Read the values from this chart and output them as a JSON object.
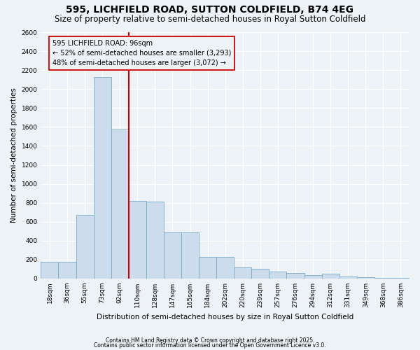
{
  "title": "595, LICHFIELD ROAD, SUTTON COLDFIELD, B74 4EG",
  "subtitle": "Size of property relative to semi-detached houses in Royal Sutton Coldfield",
  "xlabel": "Distribution of semi-detached houses by size in Royal Sutton Coldfield",
  "ylabel": "Number of semi-detached properties",
  "categories": [
    "18sqm",
    "36sqm",
    "55sqm",
    "73sqm",
    "92sqm",
    "110sqm",
    "128sqm",
    "147sqm",
    "165sqm",
    "184sqm",
    "202sqm",
    "220sqm",
    "239sqm",
    "257sqm",
    "276sqm",
    "294sqm",
    "312sqm",
    "331sqm",
    "349sqm",
    "368sqm",
    "386sqm"
  ],
  "values": [
    180,
    175,
    670,
    2130,
    1570,
    820,
    810,
    490,
    490,
    230,
    230,
    120,
    100,
    70,
    55,
    40,
    50,
    20,
    12,
    8,
    8
  ],
  "bar_color": "#cddcec",
  "bar_edge_color": "#7aaac8",
  "vline_x_index": 4,
  "vline_color": "#cc0000",
  "annotation_text": "595 LICHFIELD ROAD: 96sqm\n← 52% of semi-detached houses are smaller (3,293)\n48% of semi-detached houses are larger (3,072) →",
  "annotation_box_color": "#cc0000",
  "bg_color": "#edf2f7",
  "grid_color": "#ffffff",
  "ylim": [
    0,
    2600
  ],
  "yticks": [
    0,
    200,
    400,
    600,
    800,
    1000,
    1200,
    1400,
    1600,
    1800,
    2000,
    2200,
    2400,
    2600
  ],
  "footer1": "Contains HM Land Registry data © Crown copyright and database right 2025.",
  "footer2": "Contains public sector information licensed under the Open Government Licence v3.0.",
  "title_fontsize": 10,
  "subtitle_fontsize": 8.5,
  "annotation_fontsize": 7,
  "axis_label_fontsize": 7.5,
  "tick_fontsize": 6.5,
  "ylabel_fontsize": 7.5
}
